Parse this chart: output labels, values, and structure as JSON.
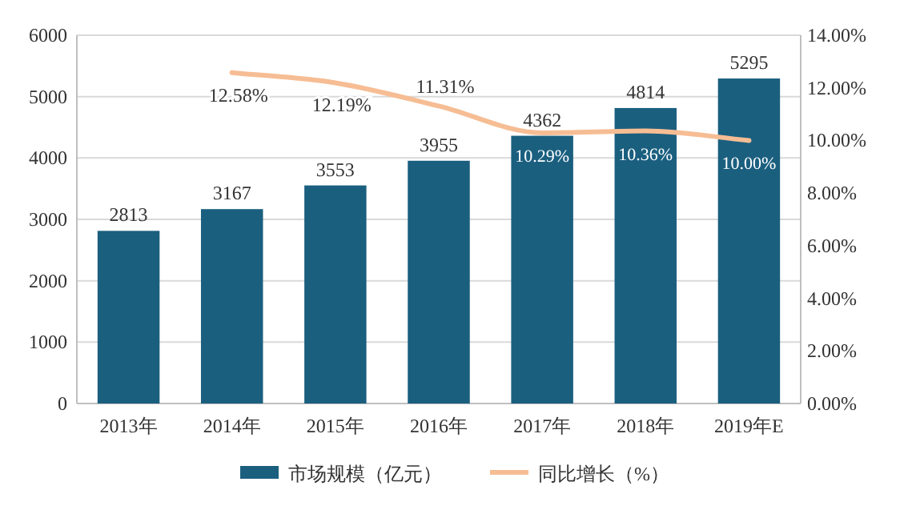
{
  "chart_data": {
    "type": "bar",
    "categories": [
      "2013年",
      "2014年",
      "2015年",
      "2016年",
      "2017年",
      "2018年",
      "2019年E"
    ],
    "series": [
      {
        "name": "市场规模（亿元）",
        "color": "#1b5f7f",
        "values": [
          2813,
          3167,
          3553,
          3955,
          4362,
          4814,
          5295
        ],
        "value_labels": [
          "2813",
          "3167",
          "3553",
          "3955",
          "4362",
          "4814",
          "5295"
        ]
      },
      {
        "name": "同比增长（%）",
        "type": "line",
        "axis": "y2",
        "color": "#f6bd94",
        "values": [
          null,
          12.58,
          12.19,
          11.31,
          10.29,
          10.36,
          10.0
        ],
        "value_labels": [
          null,
          "12.58%",
          "12.19%",
          "11.31%",
          "10.29%",
          "10.36%",
          "10.00%"
        ]
      }
    ],
    "ylim": [
      0,
      6000
    ],
    "yticks": [
      0,
      1000,
      2000,
      3000,
      4000,
      5000,
      6000
    ],
    "y2lim": [
      0,
      14
    ],
    "y2ticks": [
      {
        "value": 0,
        "label": "0.00%"
      },
      {
        "value": 2,
        "label": "2.00%"
      },
      {
        "value": 4,
        "label": "4.00%"
      },
      {
        "value": 6,
        "label": "6.00%"
      },
      {
        "value": 8,
        "label": "8.00%"
      },
      {
        "value": 10,
        "label": "10.00%"
      },
      {
        "value": 12,
        "label": "12.00%"
      },
      {
        "value": 14,
        "label": "14.00%"
      }
    ],
    "grid": "y",
    "legend": "bottom",
    "marker": "none",
    "line_style": "solid"
  }
}
